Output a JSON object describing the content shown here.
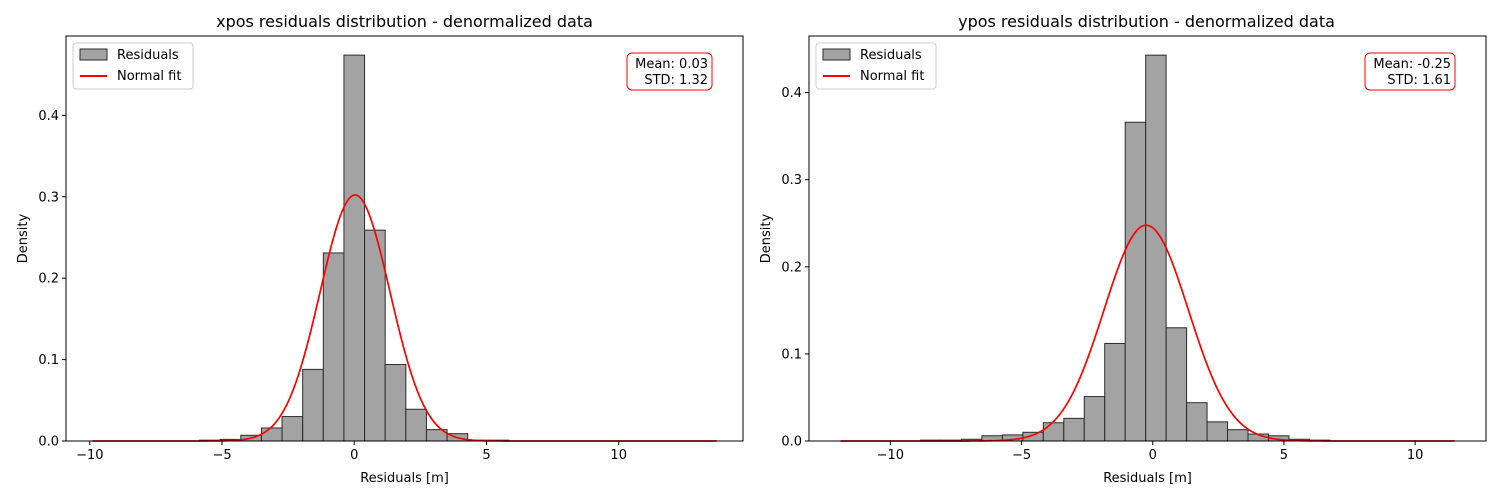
{
  "chart_data": [
    {
      "type": "histogram",
      "title": "xpos residuals distribution - denormalized data",
      "xlabel": "Residuals [m]",
      "ylabel": "Density",
      "xlim": [
        -10.9,
        14.7
      ],
      "ylim": [
        0,
        0.4975
      ],
      "xticks": [
        -10,
        -5,
        0,
        5,
        10
      ],
      "yticks": [
        0.0,
        0.1,
        0.2,
        0.3,
        0.4
      ],
      "bin_start": -5.85,
      "bin_width": 0.78,
      "values": [
        0.001,
        0.002,
        0.007,
        0.016,
        0.03,
        0.088,
        0.231,
        0.474,
        0.259,
        0.094,
        0.039,
        0.014,
        0.009,
        0.001,
        0.001
      ],
      "fit": {
        "mean": 0.03,
        "std": 1.32,
        "range": [
          -9.9,
          13.7
        ]
      },
      "legend": {
        "position": "top-left",
        "entries": [
          "Residuals",
          "Normal fit"
        ]
      },
      "stats": {
        "line1": "Mean: 0.03",
        "line2": "STD: 1.32"
      },
      "colors": {
        "bar": "#a3a3a3",
        "bar_edge": "#2b2b2b",
        "fit": "#ff0000",
        "stats_border": "#ff0000"
      }
    },
    {
      "type": "histogram",
      "title": "ypos residuals distribution - denormalized data",
      "xlabel": "Residuals [m]",
      "ylabel": "Density",
      "xlim": [
        -13.1,
        12.7
      ],
      "ylim": [
        0,
        0.465
      ],
      "xticks": [
        -10,
        -5,
        0,
        5,
        10
      ],
      "yticks": [
        0.0,
        0.1,
        0.2,
        0.3,
        0.4
      ],
      "bin_start": -8.85,
      "bin_width": 0.78,
      "values": [
        0.001,
        0.001,
        0.002,
        0.006,
        0.007,
        0.01,
        0.021,
        0.026,
        0.051,
        0.112,
        0.366,
        0.443,
        0.13,
        0.044,
        0.022,
        0.013,
        0.008,
        0.006,
        0.002,
        0.001
      ],
      "fit": {
        "mean": -0.25,
        "std": 1.61,
        "range": [
          -11.9,
          11.5
        ]
      },
      "legend": {
        "position": "top-left",
        "entries": [
          "Residuals",
          "Normal fit"
        ]
      },
      "stats": {
        "line1": "Mean: -0.25",
        "line2": "STD: 1.61"
      },
      "colors": {
        "bar": "#a3a3a3",
        "bar_edge": "#2b2b2b",
        "fit": "#ff0000",
        "stats_border": "#ff0000"
      }
    }
  ]
}
